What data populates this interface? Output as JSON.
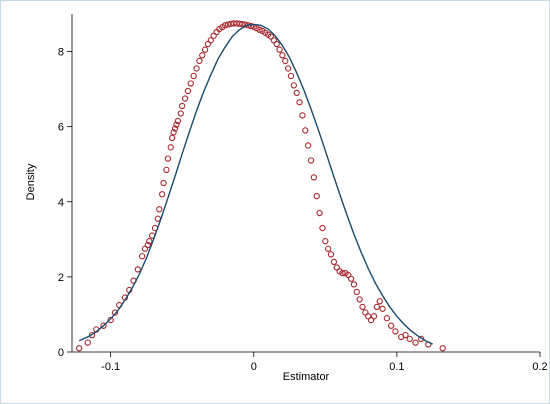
{
  "chart_data": {
    "type": "scatter",
    "title": "",
    "xlabel": "Estimator",
    "ylabel": "Density",
    "xlim": [
      -0.127,
      0.2
    ],
    "ylim": [
      0,
      9
    ],
    "xticks": [
      -0.1,
      0,
      0.1,
      0.2
    ],
    "xtick_labels": [
      "-0.1",
      "0",
      "0.1",
      "0.2"
    ],
    "yticks": [
      0,
      2,
      4,
      6,
      8
    ],
    "ytick_labels": [
      "0",
      "2",
      "4",
      "6",
      "8"
    ],
    "grid": false,
    "legend": "none",
    "colors": {
      "kernel_density": "#a8262e",
      "normal_density": "#1a4a6e",
      "frame": "#c8d9e6"
    },
    "series": [
      {
        "kind": "markers",
        "x": [
          -0.122,
          -0.116,
          -0.113,
          -0.11,
          -0.105,
          -0.1,
          -0.097,
          -0.094,
          -0.09,
          -0.087,
          -0.084,
          -0.081,
          -0.078,
          -0.076,
          -0.074,
          -0.073,
          -0.071,
          -0.069,
          -0.067,
          -0.066,
          -0.064,
          -0.063,
          -0.061,
          -0.06,
          -0.058,
          -0.057,
          -0.056,
          -0.055,
          -0.054,
          -0.053,
          -0.051,
          -0.05,
          -0.048,
          -0.046,
          -0.044,
          -0.042,
          -0.04,
          -0.038,
          -0.036,
          -0.034,
          -0.032,
          -0.03,
          -0.028,
          -0.026,
          -0.024,
          -0.022,
          -0.02,
          -0.018,
          -0.016,
          -0.014,
          -0.012,
          -0.01,
          -0.008,
          -0.006,
          -0.004,
          -0.002,
          0.0,
          0.002,
          0.004,
          0.006,
          0.008,
          0.01,
          0.012,
          0.014,
          0.016,
          0.018,
          0.02,
          0.022,
          0.024,
          0.026,
          0.028,
          0.03,
          0.032,
          0.034,
          0.036,
          0.038,
          0.04,
          0.042,
          0.044,
          0.046,
          0.048,
          0.05,
          0.052,
          0.054,
          0.056,
          0.058,
          0.06,
          0.062,
          0.064,
          0.066,
          0.068,
          0.07,
          0.072,
          0.074,
          0.076,
          0.078,
          0.08,
          0.082,
          0.084,
          0.086,
          0.088,
          0.09,
          0.093,
          0.096,
          0.099,
          0.103,
          0.106,
          0.109,
          0.113,
          0.117,
          0.122,
          0.132
        ],
        "y": [
          0.1,
          0.25,
          0.45,
          0.6,
          0.7,
          0.85,
          1.05,
          1.25,
          1.45,
          1.65,
          1.9,
          2.2,
          2.55,
          2.75,
          2.85,
          2.95,
          3.1,
          3.3,
          3.55,
          3.8,
          4.2,
          4.5,
          4.85,
          5.15,
          5.45,
          5.7,
          5.85,
          5.95,
          6.05,
          6.15,
          6.35,
          6.55,
          6.75,
          6.95,
          7.15,
          7.35,
          7.55,
          7.75,
          7.9,
          8.05,
          8.2,
          8.3,
          8.42,
          8.52,
          8.6,
          8.65,
          8.7,
          8.72,
          8.74,
          8.75,
          8.75,
          8.74,
          8.73,
          8.72,
          8.7,
          8.68,
          8.66,
          8.62,
          8.58,
          8.55,
          8.5,
          8.45,
          8.4,
          8.3,
          8.2,
          8.05,
          7.9,
          7.75,
          7.55,
          7.35,
          7.1,
          6.9,
          6.65,
          6.3,
          5.9,
          5.5,
          5.1,
          4.65,
          4.15,
          3.7,
          3.3,
          2.95,
          2.75,
          2.6,
          2.4,
          2.25,
          2.15,
          2.1,
          2.1,
          2.05,
          1.95,
          1.8,
          1.6,
          1.4,
          1.2,
          1.05,
          0.95,
          0.85,
          0.95,
          1.2,
          1.35,
          1.15,
          0.9,
          0.7,
          0.55,
          0.4,
          0.45,
          0.35,
          0.25,
          0.35,
          0.2,
          0.1
        ]
      },
      {
        "kind": "line",
        "x": [
          -0.122,
          -0.115,
          -0.11,
          -0.105,
          -0.1,
          -0.095,
          -0.09,
          -0.085,
          -0.08,
          -0.075,
          -0.07,
          -0.065,
          -0.06,
          -0.055,
          -0.05,
          -0.045,
          -0.04,
          -0.035,
          -0.03,
          -0.025,
          -0.02,
          -0.015,
          -0.01,
          -0.005,
          0.0,
          0.005,
          0.01,
          0.015,
          0.02,
          0.025,
          0.03,
          0.035,
          0.04,
          0.045,
          0.05,
          0.055,
          0.06,
          0.065,
          0.07,
          0.075,
          0.08,
          0.085,
          0.09,
          0.095,
          0.1,
          0.105,
          0.11,
          0.115,
          0.12,
          0.125
        ],
        "y": [
          0.3,
          0.42,
          0.54,
          0.7,
          0.88,
          1.1,
          1.38,
          1.7,
          2.07,
          2.5,
          3.0,
          3.53,
          4.1,
          4.68,
          5.28,
          5.86,
          6.42,
          6.93,
          7.38,
          7.8,
          8.12,
          8.4,
          8.58,
          8.7,
          8.72,
          8.7,
          8.6,
          8.42,
          8.16,
          7.84,
          7.43,
          6.98,
          6.47,
          5.93,
          5.36,
          4.78,
          4.21,
          3.66,
          3.14,
          2.66,
          2.22,
          1.83,
          1.5,
          1.2,
          0.95,
          0.74,
          0.56,
          0.42,
          0.3,
          0.21
        ]
      }
    ]
  }
}
